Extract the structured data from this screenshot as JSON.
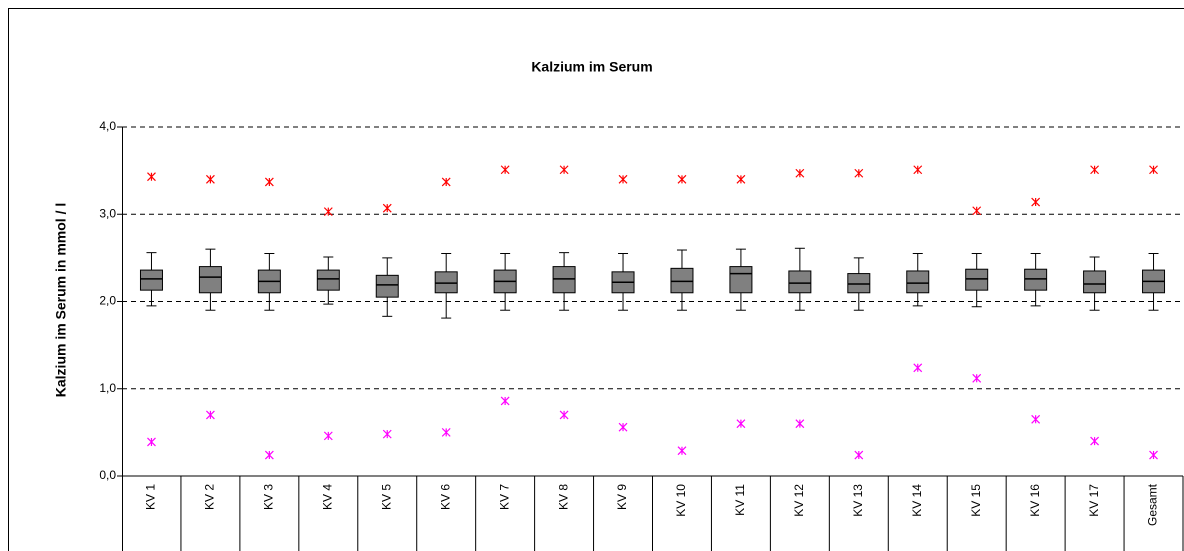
{
  "chart_data": {
    "type": "box",
    "title": "Kalzium im Serum",
    "y_label": "Kalzium im Serum in mmol / l",
    "categories": [
      "KV 1",
      "KV 2",
      "KV 3",
      "KV 4",
      "KV 5",
      "KV 6",
      "KV 7",
      "KV 8",
      "KV 9",
      "KV 10",
      "KV 11",
      "KV 12",
      "KV 13",
      "KV 14",
      "KV 15",
      "KV 16",
      "KV 17",
      "Gesamt"
    ],
    "boxes": [
      {
        "min": 1.95,
        "q1": 2.13,
        "median": 2.26,
        "q3": 2.36,
        "max": 2.56
      },
      {
        "min": 1.9,
        "q1": 2.1,
        "median": 2.28,
        "q3": 2.4,
        "max": 2.6
      },
      {
        "min": 1.9,
        "q1": 2.1,
        "median": 2.23,
        "q3": 2.36,
        "max": 2.55
      },
      {
        "min": 1.97,
        "q1": 2.13,
        "median": 2.26,
        "q3": 2.36,
        "max": 2.51
      },
      {
        "min": 1.83,
        "q1": 2.05,
        "median": 2.19,
        "q3": 2.3,
        "max": 2.5
      },
      {
        "min": 1.81,
        "q1": 2.1,
        "median": 2.21,
        "q3": 2.34,
        "max": 2.55
      },
      {
        "min": 1.9,
        "q1": 2.1,
        "median": 2.23,
        "q3": 2.36,
        "max": 2.55
      },
      {
        "min": 1.9,
        "q1": 2.1,
        "median": 2.26,
        "q3": 2.4,
        "max": 2.56
      },
      {
        "min": 1.9,
        "q1": 2.1,
        "median": 2.22,
        "q3": 2.34,
        "max": 2.55
      },
      {
        "min": 1.9,
        "q1": 2.1,
        "median": 2.23,
        "q3": 2.38,
        "max": 2.59
      },
      {
        "min": 1.9,
        "q1": 2.1,
        "median": 2.32,
        "q3": 2.4,
        "max": 2.6
      },
      {
        "min": 1.9,
        "q1": 2.1,
        "median": 2.21,
        "q3": 2.35,
        "max": 2.61
      },
      {
        "min": 1.9,
        "q1": 2.1,
        "median": 2.2,
        "q3": 2.32,
        "max": 2.5
      },
      {
        "min": 1.95,
        "q1": 2.1,
        "median": 2.21,
        "q3": 2.35,
        "max": 2.55
      },
      {
        "min": 1.94,
        "q1": 2.13,
        "median": 2.26,
        "q3": 2.37,
        "max": 2.55
      },
      {
        "min": 1.95,
        "q1": 2.13,
        "median": 2.26,
        "q3": 2.37,
        "max": 2.55
      },
      {
        "min": 1.9,
        "q1": 2.1,
        "median": 2.2,
        "q3": 2.35,
        "max": 2.51
      },
      {
        "min": 1.9,
        "q1": 2.1,
        "median": 2.23,
        "q3": 2.36,
        "max": 2.55
      }
    ],
    "outliers_high": [
      3.43,
      3.4,
      3.37,
      3.03,
      3.07,
      3.37,
      3.51,
      3.51,
      3.4,
      3.4,
      3.4,
      3.47,
      3.47,
      3.51,
      3.04,
      3.14,
      3.51,
      3.51
    ],
    "outliers_low": [
      0.39,
      0.7,
      0.24,
      0.46,
      0.48,
      0.5,
      0.86,
      0.7,
      0.56,
      0.29,
      0.6,
      0.6,
      0.24,
      1.24,
      1.12,
      0.65,
      0.4,
      0.24
    ],
    "box_color": "#808080",
    "outlier_high_color": "#ff0000",
    "outlier_low_color": "#ff00ff",
    "ylim": [
      0,
      4
    ],
    "yticks": [
      {
        "value": 0,
        "label": "0,0"
      },
      {
        "value": 1,
        "label": "1,0"
      },
      {
        "value": 2,
        "label": "2,0"
      },
      {
        "value": 3,
        "label": "3,0"
      },
      {
        "value": 4,
        "label": "4,0"
      }
    ],
    "grid": true
  }
}
